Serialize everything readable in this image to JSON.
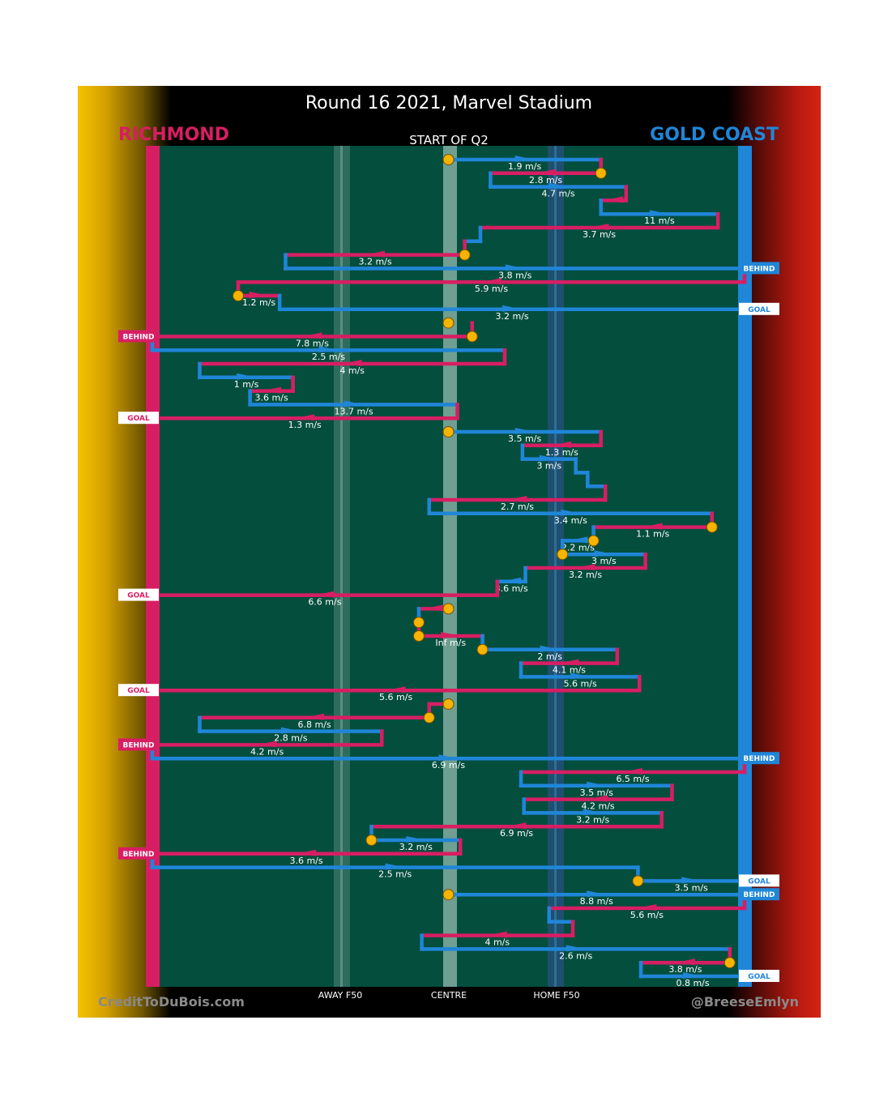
{
  "title": "Round 16 2021, Marvel Stadium",
  "subtitle": "START OF Q2",
  "teams": {
    "left": {
      "name": "RICHMOND",
      "color": "#d81e63"
    },
    "right": {
      "name": "GOLD COAST",
      "color": "#1f86d8"
    }
  },
  "credits": {
    "left": "CreditToDuBois.com",
    "right": "@BreeseEmlyn"
  },
  "colors": {
    "field": "#044e3e",
    "marker": "#f5b400",
    "white": "#ffffff"
  },
  "chart_data": {
    "type": "possession-chain",
    "x_axis": {
      "ticks": [
        {
          "label": "AWAY F50",
          "x": 0.65
        },
        {
          "label": "CENTRE",
          "x": 1.0
        },
        {
          "label": "HOME F50",
          "x": 1.35
        }
      ],
      "range": [
        0,
        2
      ]
    },
    "y_axis": {
      "direction": "down",
      "range": [
        0,
        61
      ]
    },
    "segments": [
      {
        "team": "GC",
        "y": 1,
        "x1": 1.0,
        "x2": 1.515,
        "speed": "1.9 m/s"
      },
      {
        "team": "RI",
        "y": 2,
        "x1": 1.515,
        "x2": 1.142,
        "speed": "2.8 m/s"
      },
      {
        "team": "GC",
        "y": 3,
        "x1": 1.142,
        "x2": 1.6,
        "speed": "4.7 m/s"
      },
      {
        "team": "RI",
        "y": 4,
        "x1": 1.6,
        "x2": 1.515
      },
      {
        "team": "GC",
        "y": 5,
        "x1": 1.515,
        "x2": 1.91,
        "speed": "11 m/s"
      },
      {
        "team": "RI",
        "y": 6,
        "x1": 1.91,
        "x2": 1.108,
        "speed": "3.7 m/s"
      },
      {
        "team": "GC",
        "y": 7,
        "x1": 1.108,
        "x2": 1.055
      },
      {
        "team": "RI",
        "y": 8,
        "x1": 1.055,
        "x2": 0.45,
        "speed": "3.2 m/s"
      },
      {
        "team": "GC",
        "y": 9,
        "x1": 0.45,
        "x2": 2.0,
        "speed": "3.8 m/s"
      },
      {
        "team": "RI",
        "y": 10,
        "x1": 2.0,
        "x2": 0.29,
        "speed": "5.9 m/s"
      },
      {
        "team": "RI",
        "y": 11,
        "x1": 0.29,
        "x2": 0.43,
        "speed": "1.2 m/s"
      },
      {
        "team": "GC",
        "y": 12,
        "x1": 0.43,
        "x2": 2.0,
        "speed": "3.2 m/s"
      },
      {
        "team": "RI",
        "y": 13,
        "x1": 1.0,
        "x2": 1.0
      },
      {
        "team": "RI",
        "y": 14,
        "x1": 1.08,
        "x2": 0.0,
        "speed": "7.8 m/s"
      },
      {
        "team": "GC",
        "y": 15,
        "x1": 0.0,
        "x2": 1.19,
        "speed": "2.5 m/s"
      },
      {
        "team": "RI",
        "y": 16,
        "x1": 1.19,
        "x2": 0.16,
        "speed": "4 m/s"
      },
      {
        "team": "GC",
        "y": 17,
        "x1": 0.16,
        "x2": 0.475,
        "speed": "1 m/s"
      },
      {
        "team": "RI",
        "y": 18,
        "x1": 0.475,
        "x2": 0.33,
        "speed": "3.6 m/s"
      },
      {
        "team": "GC",
        "y": 19,
        "x1": 0.33,
        "x2": 1.03,
        "speed": "13.7 m/s"
      },
      {
        "team": "RI",
        "y": 20,
        "x1": 1.03,
        "x2": 0.0,
        "speed": "1.3 m/s"
      },
      {
        "team": "GC",
        "y": 21,
        "x1": 1.0,
        "x2": 1.515,
        "speed": "3.5 m/s"
      },
      {
        "team": "RI",
        "y": 22,
        "x1": 1.515,
        "x2": 1.25,
        "speed": "1.3 m/s"
      },
      {
        "team": "GC",
        "y": 23,
        "x1": 1.25,
        "x2": 1.43,
        "speed": "3 m/s"
      },
      {
        "team": "GC",
        "y": 24,
        "x1": 1.43,
        "x2": 1.47
      },
      {
        "team": "GC",
        "y": 25,
        "x1": 1.47,
        "x2": 1.53
      },
      {
        "team": "RI",
        "y": 26,
        "x1": 1.53,
        "x2": 0.935,
        "speed": "2.7 m/s"
      },
      {
        "team": "GC",
        "y": 27,
        "x1": 0.935,
        "x2": 1.89,
        "speed": "3.4 m/s"
      },
      {
        "team": "RI",
        "y": 28,
        "x1": 1.89,
        "x2": 1.49,
        "speed": "1.1 m/s"
      },
      {
        "team": "GC",
        "y": 29,
        "x1": 1.49,
        "x2": 1.385,
        "speed": "2.2 m/s"
      },
      {
        "team": "GC",
        "y": 30,
        "x1": 1.385,
        "x2": 1.665,
        "speed": "3 m/s"
      },
      {
        "team": "RI",
        "y": 31,
        "x1": 1.665,
        "x2": 1.26,
        "speed": "3.2 m/s"
      },
      {
        "team": "GC",
        "y": 32,
        "x1": 1.26,
        "x2": 1.165,
        "speed": "3.6 m/s"
      },
      {
        "team": "RI",
        "y": 33,
        "x1": 1.165,
        "x2": 0.0,
        "speed": "6.6 m/s"
      },
      {
        "team": "RI",
        "y": 34,
        "x1": 1.0,
        "x2": 0.9
      },
      {
        "team": "GC",
        "y": 35,
        "x1": 0.9,
        "x2": 0.9
      },
      {
        "team": "RI",
        "y": 36,
        "x1": 0.9,
        "x2": 1.115,
        "speed": "Inf m/s"
      },
      {
        "team": "GC",
        "y": 37,
        "x1": 1.115,
        "x2": 1.57,
        "speed": "2 m/s"
      },
      {
        "team": "RI",
        "y": 38,
        "x1": 1.57,
        "x2": 1.245,
        "speed": "4.1 m/s"
      },
      {
        "team": "GC",
        "y": 39,
        "x1": 1.245,
        "x2": 1.645,
        "speed": "5.6 m/s"
      },
      {
        "team": "RI",
        "y": 40,
        "x1": 1.645,
        "x2": 0.0,
        "speed": "5.6 m/s"
      },
      {
        "team": "RI",
        "y": 41,
        "x1": 1.0,
        "x2": 0.935
      },
      {
        "team": "RI",
        "y": 42,
        "x1": 0.935,
        "x2": 0.16,
        "speed": "6.8 m/s"
      },
      {
        "team": "GC",
        "y": 43,
        "x1": 0.16,
        "x2": 0.775,
        "speed": "2.8 m/s"
      },
      {
        "team": "RI",
        "y": 44,
        "x1": 0.775,
        "x2": 0.0,
        "speed": "4.2 m/s"
      },
      {
        "team": "GC",
        "y": 45,
        "x1": 0.0,
        "x2": 2.0,
        "speed": "6.9 m/s"
      },
      {
        "team": "RI",
        "y": 46,
        "x1": 2.0,
        "x2": 1.245,
        "speed": "6.5 m/s"
      },
      {
        "team": "GC",
        "y": 47,
        "x1": 1.245,
        "x2": 1.755,
        "speed": "3.5 m/s"
      },
      {
        "team": "RI",
        "y": 48,
        "x1": 1.755,
        "x2": 1.255,
        "speed": "4.2 m/s"
      },
      {
        "team": "GC",
        "y": 49,
        "x1": 1.255,
        "x2": 1.72,
        "speed": "3.2 m/s"
      },
      {
        "team": "RI",
        "y": 50,
        "x1": 1.72,
        "x2": 0.74,
        "speed": "6.9 m/s"
      },
      {
        "team": "GC",
        "y": 51,
        "x1": 0.74,
        "x2": 1.04,
        "speed": "3.2 m/s"
      },
      {
        "team": "RI",
        "y": 52,
        "x1": 1.04,
        "x2": 0.0,
        "speed": "3.6 m/s"
      },
      {
        "team": "GC",
        "y": 53,
        "x1": 0.0,
        "x2": 1.64,
        "speed": "2.5 m/s"
      },
      {
        "team": "GC",
        "y": 54,
        "x1": 1.64,
        "x2": 2.0,
        "speed": "3.5 m/s"
      },
      {
        "team": "GC",
        "y": 55,
        "x1": 1.0,
        "x2": 2.0,
        "speed": "8.8 m/s"
      },
      {
        "team": "RI",
        "y": 56,
        "x1": 2.0,
        "x2": 1.34,
        "speed": "5.6 m/s"
      },
      {
        "team": "GC",
        "y": 57,
        "x1": 1.34,
        "x2": 1.42
      },
      {
        "team": "RI",
        "y": 58,
        "x1": 1.42,
        "x2": 0.91,
        "speed": "4 m/s"
      },
      {
        "team": "GC",
        "y": 59,
        "x1": 0.91,
        "x2": 1.95,
        "speed": "2.6 m/s"
      },
      {
        "team": "RI",
        "y": 60,
        "x1": 1.95,
        "x2": 1.65,
        "speed": "3.8 m/s"
      },
      {
        "team": "GC",
        "y": 61,
        "x1": 1.65,
        "x2": 2.0,
        "speed": "0.8 m/s"
      }
    ],
    "chain_starts": [
      1,
      13,
      21,
      34,
      41,
      55
    ],
    "markers": [
      {
        "y": 1,
        "x": 1.0
      },
      {
        "y": 2,
        "x": 1.515
      },
      {
        "y": 8,
        "x": 1.055
      },
      {
        "y": 11,
        "x": 0.29
      },
      {
        "y": 13,
        "x": 1.0
      },
      {
        "y": 14,
        "x": 1.08
      },
      {
        "y": 21,
        "x": 1.0
      },
      {
        "y": 28,
        "x": 1.89
      },
      {
        "y": 29,
        "x": 1.49
      },
      {
        "y": 30,
        "x": 1.385
      },
      {
        "y": 34,
        "x": 1.0
      },
      {
        "y": 35,
        "x": 0.9
      },
      {
        "y": 36,
        "x": 0.9
      },
      {
        "y": 37,
        "x": 1.115
      },
      {
        "y": 41,
        "x": 1.0
      },
      {
        "y": 42,
        "x": 0.935
      },
      {
        "y": 51,
        "x": 0.74
      },
      {
        "y": 54,
        "x": 1.64
      },
      {
        "y": 55,
        "x": 1.0
      },
      {
        "y": 60,
        "x": 1.95
      }
    ],
    "scores": [
      {
        "y": 9,
        "side": "right",
        "label": "BEHIND"
      },
      {
        "y": 12,
        "side": "right",
        "label": "GOAL"
      },
      {
        "y": 14,
        "side": "left",
        "label": "BEHIND"
      },
      {
        "y": 20,
        "side": "left",
        "label": "GOAL"
      },
      {
        "y": 33,
        "side": "left",
        "label": "GOAL"
      },
      {
        "y": 40,
        "side": "left",
        "label": "GOAL"
      },
      {
        "y": 44,
        "side": "left",
        "label": "BEHIND"
      },
      {
        "y": 45,
        "side": "right",
        "label": "BEHIND"
      },
      {
        "y": 52,
        "side": "left",
        "label": "BEHIND"
      },
      {
        "y": 54,
        "side": "right",
        "label": "GOAL"
      },
      {
        "y": 55,
        "side": "right",
        "label": "BEHIND"
      },
      {
        "y": 61,
        "side": "right",
        "label": "GOAL"
      }
    ]
  }
}
